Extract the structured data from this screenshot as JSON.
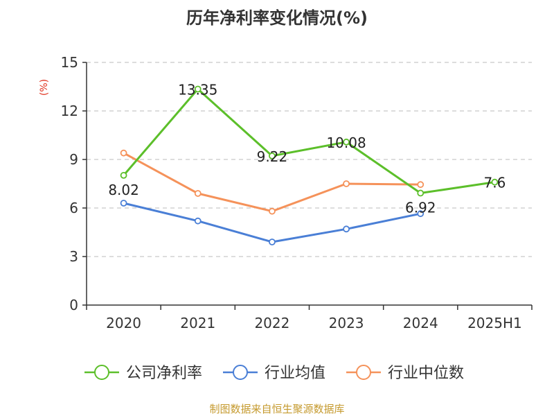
{
  "chart_data": {
    "type": "line",
    "title": "历年净利率变化情况(%)",
    "ylabel": "(%)",
    "categories": [
      "2020",
      "2021",
      "2022",
      "2023",
      "2024",
      "2025H1"
    ],
    "ylim": [
      0,
      15
    ],
    "yticks": [
      0,
      3,
      6,
      9,
      12,
      15
    ],
    "grid": true,
    "legend_position": "bottom",
    "series": [
      {
        "name": "公司净利率",
        "color": "#5cbf2a",
        "values": [
          8.02,
          13.35,
          9.22,
          10.08,
          6.92,
          7.6
        ],
        "labels": [
          "8.02",
          "13.35",
          "9.22",
          "10.08",
          "6.92",
          "7.6"
        ]
      },
      {
        "name": "行业均值",
        "color": "#4a7fd6",
        "values": [
          6.3,
          5.2,
          3.9,
          4.7,
          5.65,
          null
        ]
      },
      {
        "name": "行业中位数",
        "color": "#f5925a",
        "values": [
          9.4,
          6.9,
          5.8,
          7.5,
          7.45,
          null
        ]
      }
    ]
  },
  "source": "制图数据来自恒生聚源数据库"
}
